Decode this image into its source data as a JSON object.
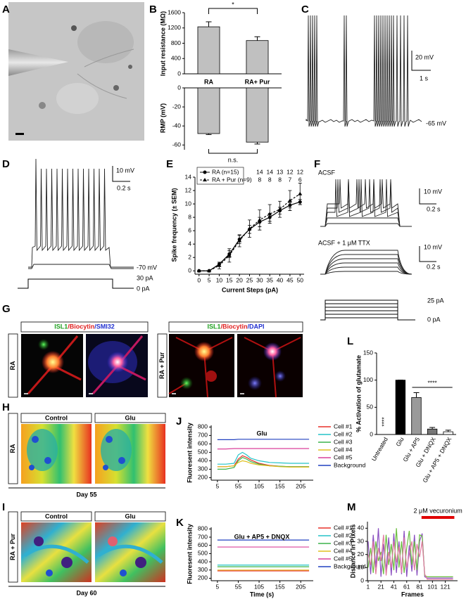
{
  "panel_labels": [
    "A",
    "B",
    "C",
    "D",
    "E",
    "F",
    "G",
    "H",
    "I",
    "J",
    "K",
    "L",
    "M"
  ],
  "traces": {
    "C": {
      "scale_voltage": "20 mV",
      "scale_time": "1 s",
      "baseline": "-65 mV"
    },
    "D": {
      "scale_voltage": "10 mV",
      "scale_time": "0.2 s",
      "baseline": "-70 mV",
      "step_current": "30 pA",
      "zero_current": "0 pA"
    },
    "F": {
      "condition_1": "ACSF",
      "scale_voltage_1": "10 mV",
      "scale_time_1": "0.2 s",
      "condition_2": "ACSF + 1 μM TTX",
      "scale_voltage_2": "10 mV",
      "scale_time_2": "0.2 s",
      "step_current": "25 pA",
      "zero_current": "0 pA"
    }
  },
  "images": {
    "G": {
      "headers": [
        [
          "ISL1",
          "/Biocytin",
          "/SMI32"
        ],
        [
          "ISL1",
          "/Biocytin",
          "/DAPI"
        ]
      ],
      "rows": [
        "RA",
        "RA + Pur"
      ]
    },
    "H": {
      "columns": [
        "Control",
        "Glu"
      ],
      "row": "RA",
      "day": "Day 55"
    },
    "I": {
      "columns": [
        "Control",
        "Glu"
      ],
      "row": "RA + Pur",
      "day": "Day 60"
    }
  },
  "chart_data": [
    {
      "type": "bar",
      "ylabel": "Input resistance (MΩ)",
      "categories": [
        "RA",
        "RA+ Pur"
      ],
      "values": [
        1230,
        870
      ],
      "errors": [
        130,
        100
      ],
      "color": "#c0c0c0",
      "ylim": [
        0,
        1600
      ],
      "yticks": [
        0,
        400,
        800,
        1200,
        1600
      ],
      "annotation": "*"
    },
    {
      "type": "bar",
      "ylabel": "RMP (mV)",
      "values": [
        -48,
        -57
      ],
      "errors": [
        1,
        2
      ],
      "color": "#c0c0c0",
      "ylim": [
        -65,
        0
      ],
      "yticks": [
        -60,
        -40,
        -20,
        0
      ],
      "annotation": "n.s."
    },
    {
      "type": "line",
      "xlabel": "Current Steps (pA)",
      "ylabel": "Spike frequency (± SEM)",
      "x": [
        0,
        5,
        10,
        15,
        20,
        25,
        30,
        35,
        40,
        45,
        50
      ],
      "series": [
        {
          "name": "RA (n=15)",
          "color": "#000000",
          "marker": "circle",
          "values": [
            0,
            0,
            1,
            2.5,
            4.7,
            6.2,
            7.3,
            8.0,
            9.0,
            9.8,
            10.3
          ],
          "errors": [
            0,
            0,
            0.3,
            0.5,
            0.6,
            0.6,
            0.7,
            0.6,
            0.5,
            0.4,
            0.4
          ]
        },
        {
          "name": "RA + Pur (n=9)",
          "color": "#000000",
          "marker": "triangle",
          "dashed": true,
          "values": [
            0,
            0,
            0.8,
            2.3,
            4.5,
            6.3,
            7.6,
            8.5,
            9.2,
            10.5,
            11.5
          ],
          "errors": [
            0,
            0,
            0.5,
            1.0,
            0.9,
            1.3,
            1.5,
            1.4,
            1.2,
            1.5,
            1.6
          ]
        }
      ],
      "xlim": [
        -2,
        52
      ],
      "ylim": [
        -0.5,
        14
      ],
      "xticks": [
        0,
        5,
        10,
        15,
        20,
        25,
        30,
        35,
        40,
        45,
        50
      ],
      "yticks": [
        0,
        2,
        4,
        6,
        8,
        10,
        12,
        14
      ],
      "n_counts_x": [
        30,
        35,
        40,
        45,
        50
      ],
      "n_counts": [
        [
          14,
          14,
          13,
          12,
          12
        ],
        [
          8,
          8,
          8,
          7,
          6
        ]
      ]
    },
    {
      "type": "line",
      "title": "Glu",
      "ylabel": "Fluoresent intensity",
      "x": [
        5,
        25,
        45,
        55,
        65,
        75,
        85,
        105,
        130,
        155,
        180,
        205,
        225
      ],
      "series": [
        {
          "name": "Cell #1",
          "color": "#e8312a",
          "values": [
            330,
            330,
            340,
            420,
            460,
            440,
            410,
            370,
            345,
            335,
            330,
            330,
            330
          ]
        },
        {
          "name": "Cell #2",
          "color": "#25c4c8",
          "values": [
            360,
            360,
            370,
            470,
            500,
            470,
            430,
            400,
            380,
            375,
            370,
            370,
            370
          ]
        },
        {
          "name": "Cell #3",
          "color": "#3cb44b",
          "values": [
            300,
            300,
            320,
            400,
            440,
            420,
            390,
            360,
            340,
            335,
            330,
            330,
            330
          ]
        },
        {
          "name": "Cell #4",
          "color": "#e0c020",
          "values": [
            330,
            330,
            340,
            380,
            400,
            390,
            370,
            350,
            340,
            330,
            325,
            325,
            325
          ]
        },
        {
          "name": "Cell #5",
          "color": "#d9409a",
          "values": [
            540,
            540,
            545,
            545,
            545,
            545,
            545,
            545,
            545,
            545,
            545,
            545,
            545
          ]
        },
        {
          "name": "Background",
          "color": "#2040c0",
          "values": [
            650,
            650,
            650,
            655,
            655,
            655,
            655,
            655,
            655,
            655,
            655,
            655,
            655
          ]
        }
      ],
      "xlim": [
        -10,
        235
      ],
      "ylim": [
        170,
        820
      ],
      "xticks": [
        5,
        55,
        105,
        155,
        205
      ],
      "yticks": [
        200,
        300,
        400,
        500,
        600,
        700,
        800
      ]
    },
    {
      "type": "line",
      "title": "Glu + AP5 + DNQX",
      "xlabel": "Time (s)",
      "ylabel": "Fluoresent intensity",
      "x": [
        5,
        55,
        105,
        155,
        205,
        225
      ],
      "series": [
        {
          "name": "Cell #1",
          "color": "#e8312a",
          "values": [
            290,
            290,
            290,
            290,
            290,
            290
          ]
        },
        {
          "name": "Cell #2",
          "color": "#25c4c8",
          "values": [
            360,
            360,
            360,
            360,
            360,
            360
          ]
        },
        {
          "name": "Cell #3",
          "color": "#3cb44b",
          "values": [
            340,
            340,
            340,
            340,
            340,
            340
          ]
        },
        {
          "name": "Cell #4",
          "color": "#e0c020",
          "values": [
            300,
            300,
            300,
            300,
            300,
            300
          ]
        },
        {
          "name": "Cell #5",
          "color": "#d9409a",
          "values": [
            580,
            580,
            580,
            580,
            580,
            580
          ]
        },
        {
          "name": "Background",
          "color": "#2040c0",
          "values": [
            665,
            665,
            665,
            665,
            665,
            665
          ]
        }
      ],
      "xlim": [
        -10,
        235
      ],
      "ylim": [
        170,
        820
      ],
      "xticks": [
        5,
        55,
        105,
        155,
        205
      ],
      "yticks": [
        200,
        300,
        400,
        500,
        600,
        700,
        800
      ]
    },
    {
      "type": "bar",
      "ylabel": "% Activation of glutamate",
      "categories": [
        "Untreated",
        "Glu",
        "Glu + AP5",
        "Glu + DNQX",
        "Glu + AP5 + DNQX"
      ],
      "values": [
        0,
        100,
        68,
        10,
        5
      ],
      "errors": [
        0,
        0,
        9,
        3,
        3
      ],
      "colors": [
        "#ffffff",
        "#000000",
        "#9a9a9a",
        "#777777",
        "#ffffff"
      ],
      "ylim": [
        0,
        150
      ],
      "yticks": [
        0,
        50,
        100,
        150
      ],
      "annotations": [
        "****",
        "****"
      ]
    },
    {
      "type": "line",
      "xlabel": "Frames",
      "ylabel": "Distance in Pixels",
      "x": [
        1,
        5,
        9,
        13,
        17,
        21,
        25,
        29,
        33,
        37,
        41,
        45,
        49,
        53,
        57,
        61,
        65,
        69,
        73,
        77,
        81,
        85,
        89,
        93,
        97,
        101,
        105,
        109,
        113,
        117,
        121,
        125,
        129,
        133
      ],
      "series": [
        {
          "color": "#8a4fc0",
          "values": [
            30,
            5,
            35,
            10,
            40,
            3,
            28,
            8,
            33,
            4,
            36,
            6,
            30,
            5,
            38,
            3,
            27,
            7,
            35,
            4,
            30,
            36,
            3,
            2,
            2,
            2,
            2,
            2,
            2,
            2,
            2,
            2,
            2,
            2
          ]
        },
        {
          "color": "#6cbf3f",
          "values": [
            10,
            25,
            6,
            30,
            15,
            22,
            5,
            35,
            12,
            28,
            8,
            40,
            10,
            30,
            6,
            25,
            38,
            12,
            30,
            8,
            35,
            34,
            4,
            3,
            3,
            3,
            3,
            3,
            3,
            3,
            3,
            3,
            3,
            3
          ]
        },
        {
          "color": "#e07aa0",
          "values": [
            20,
            12,
            30,
            5,
            25,
            15,
            35,
            4,
            22,
            10,
            30,
            14,
            26,
            6,
            33,
            10,
            20,
            30,
            8,
            28,
            18,
            30,
            5,
            1,
            1,
            1,
            1,
            1,
            1,
            1,
            1,
            1,
            1,
            1
          ]
        }
      ],
      "xlim": [
        0,
        140
      ],
      "ylim": [
        0,
        45
      ],
      "xticks": [
        1,
        21,
        41,
        61,
        81,
        101,
        121
      ],
      "yticks": [
        0,
        10,
        20,
        30,
        40
      ],
      "annotation": "2 μM vecuronium",
      "treatment_range": [
        84,
        135
      ],
      "treatment_color": "#e00000"
    }
  ]
}
